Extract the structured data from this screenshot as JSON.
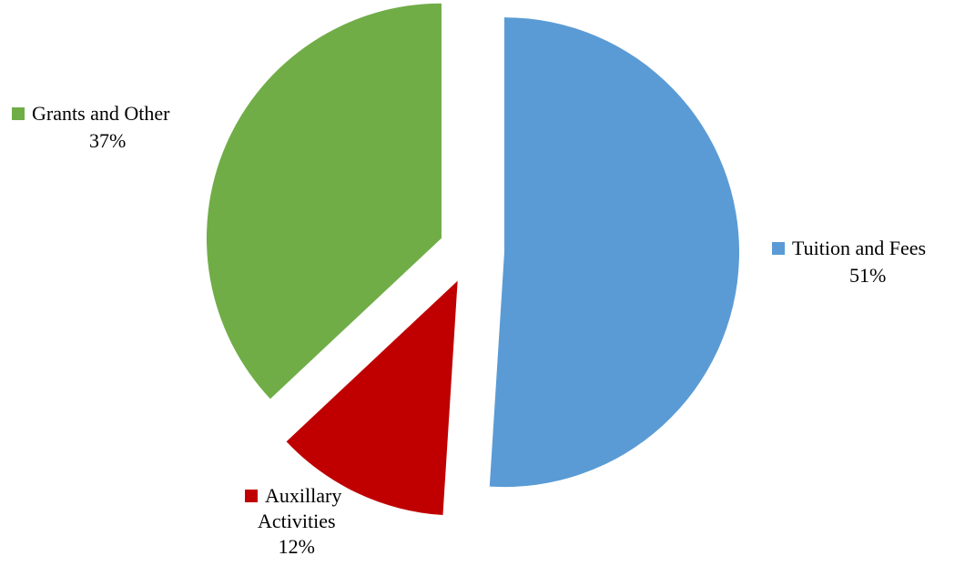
{
  "chart_data": {
    "type": "pie",
    "title": "",
    "categories": [
      "Tuition and Fees",
      "Auxillary Activities",
      "Grants and Other"
    ],
    "values": [
      51,
      12,
      37
    ],
    "value_labels": [
      "51%",
      "12%",
      "37%"
    ],
    "label_lines": [
      [
        "Tuition and Fees",
        "51%"
      ],
      [
        "Auxillary",
        "Activities",
        "12%"
      ],
      [
        "Grants and Other",
        "37%"
      ]
    ],
    "colors": [
      "#5b9bd5",
      "#c00000",
      "#70ad47"
    ],
    "start_angle": "12 o'clock, clockwise",
    "exploded": true,
    "legend": "none (labels beside slices)"
  }
}
